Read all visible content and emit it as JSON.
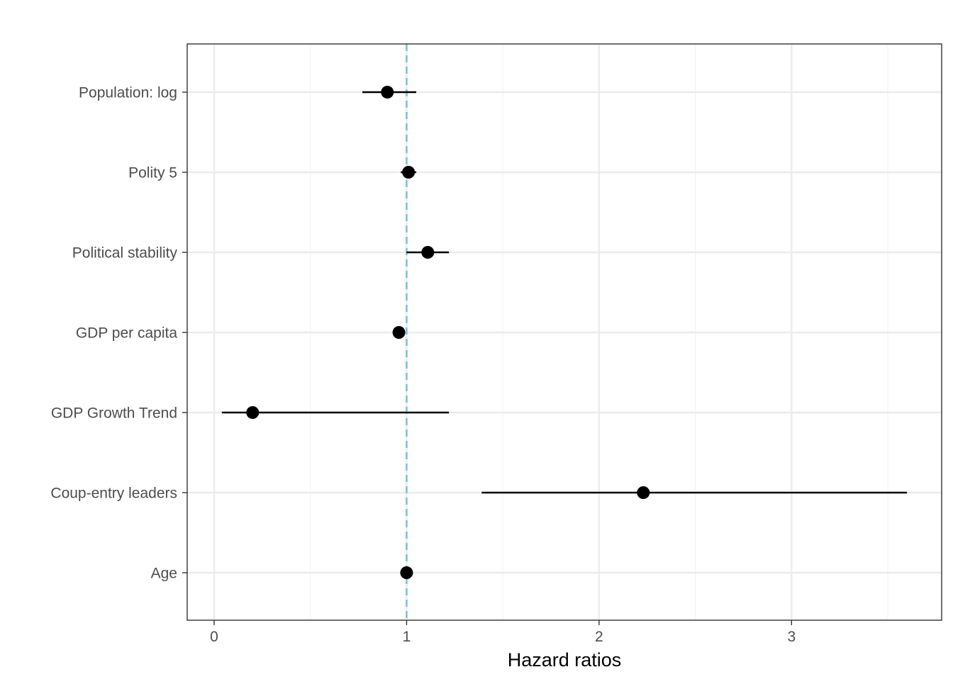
{
  "chart_data": {
    "type": "scatter",
    "subtype": "coefficient-plot",
    "title": "",
    "xlabel": "Hazard ratios",
    "ylabel": "",
    "xlim": [
      -0.14,
      3.78
    ],
    "x_ticks": [
      0,
      1,
      2,
      3
    ],
    "x_tick_labels": [
      "0",
      "1",
      "2",
      "3"
    ],
    "reference_line": {
      "x": 1,
      "style": "dashed",
      "color": "#7ec0e0"
    },
    "grid": true,
    "legend": "none",
    "categories": [
      "Population: log",
      "Polity 5",
      "Political stability",
      "GDP per capita",
      "GDP Growth Trend",
      "Coup-entry leaders",
      "Age"
    ],
    "estimates": [
      0.9,
      1.01,
      1.11,
      0.96,
      0.2,
      2.23,
      1.0
    ],
    "ci_low": [
      0.77,
      0.97,
      1.0,
      0.95,
      0.04,
      1.39,
      0.99
    ],
    "ci_high": [
      1.05,
      1.05,
      1.22,
      0.98,
      1.22,
      3.6,
      1.01
    ],
    "colors": {
      "point": "#000000",
      "errorbar": "#000000",
      "grid_major": "#ebebeb",
      "grid_minor": "#f2f2f2",
      "panel_border": "#333333",
      "tick_text": "#4d4d4d"
    }
  }
}
